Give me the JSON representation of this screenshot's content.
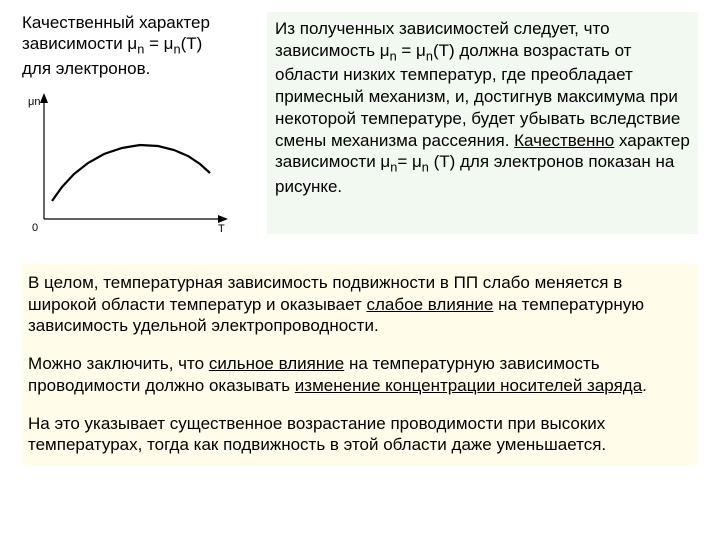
{
  "leftTitle": {
    "line1": "Качественный характер",
    "line2_pre": "зависимости μ",
    "line2_sub": "n",
    "line2_mid": " = μ",
    "line2_sub2": "n",
    "line2_post": "(T)",
    "line3": "для электронов."
  },
  "chart": {
    "background": "#ffffff",
    "axis_color": "#000000",
    "curve_color": "#000000",
    "curve_width": 2.2,
    "x_label": "T",
    "y_label": "μn",
    "origin_label": "0",
    "label_fontsize": 11,
    "curve_points": [
      [
        30,
        112
      ],
      [
        40,
        98
      ],
      [
        52,
        85
      ],
      [
        66,
        74
      ],
      [
        82,
        65
      ],
      [
        100,
        59
      ],
      [
        118,
        56
      ],
      [
        136,
        57
      ],
      [
        152,
        61
      ],
      [
        166,
        67
      ],
      [
        178,
        75
      ],
      [
        188,
        84
      ]
    ]
  },
  "rightText": {
    "s1": "Из полученных зависимостей следует, что зависимость μ",
    "s1sub": "n",
    "s2": " = μ",
    "s2sub": "n",
    "s3": "(T) должна возрастать от области низких температур, где преобладает примесный механизм, и, достигнув максимума при некоторой температуре, будет убывать вследствие смены механизма рассеяния. ",
    "s4u": "Качественно",
    "s5": " характер зависимости μ",
    "s5sub": "n",
    "s6": "= μ",
    "s6sub": "n",
    "s7": " (T) для электронов показан на рисунке."
  },
  "para1": {
    "a": "В целом, температурная зависимость подвижности в ПП слабо меняется в широкой области температур и оказывает ",
    "u": "слабое влияние",
    "b": " на температурную зависимость удельной электропроводности."
  },
  "para2": {
    "a": "Можно заключить, что ",
    "u1": "сильное влияние",
    "b": " на температурную зависимость проводимости должно оказывать ",
    "u2": "изменение концентрации носителей заряда",
    "c": "."
  },
  "para3": {
    "a": "На это указывает существенное возрастание проводимости при высоких температурах, тогда как подвижность в этой области даже уменьшается."
  },
  "colors": {
    "right_bg": "#f2f9f0",
    "bottom_bg": "#fffde9",
    "text": "#000000"
  }
}
